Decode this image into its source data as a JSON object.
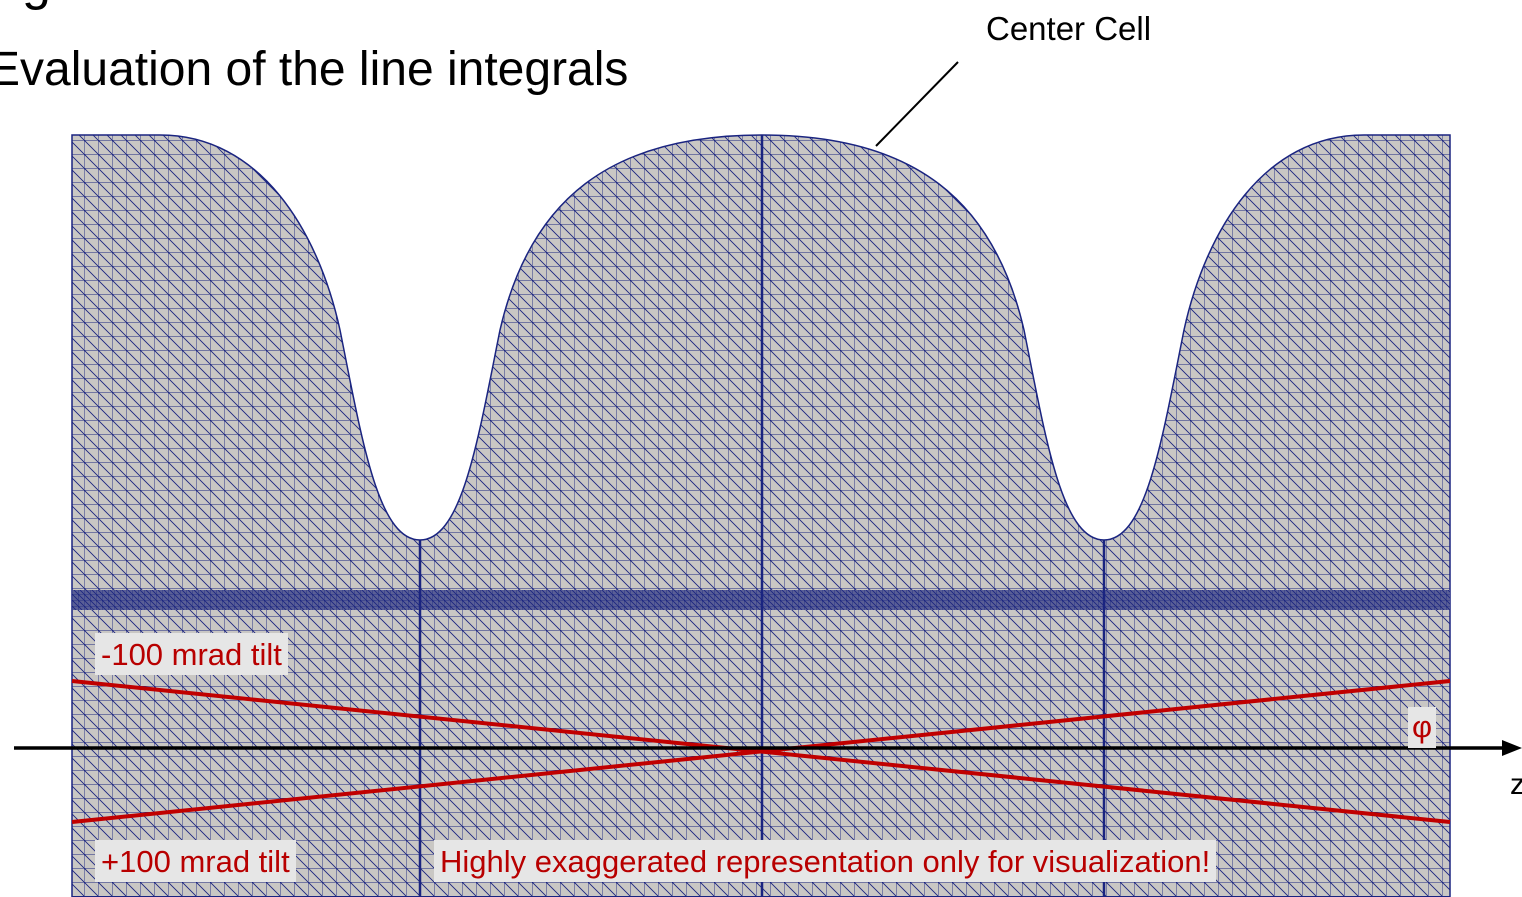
{
  "slide": {
    "heading_fragment": "g",
    "subtitle": "Evaluation of the line integrals",
    "callout_label": "Center Cell"
  },
  "figure": {
    "tilt_negative": "-100 mrad tilt",
    "tilt_positive": "+100 mrad tilt",
    "disclaimer": "Highly exaggerated representation only for visualization!",
    "angle_symbol": "φ",
    "axis_label": "z"
  },
  "colors": {
    "mesh_fill": "#c9c7c4",
    "mesh_lines": "#1a2480",
    "tilt_lines": "#c00000",
    "axis": "#000000"
  }
}
